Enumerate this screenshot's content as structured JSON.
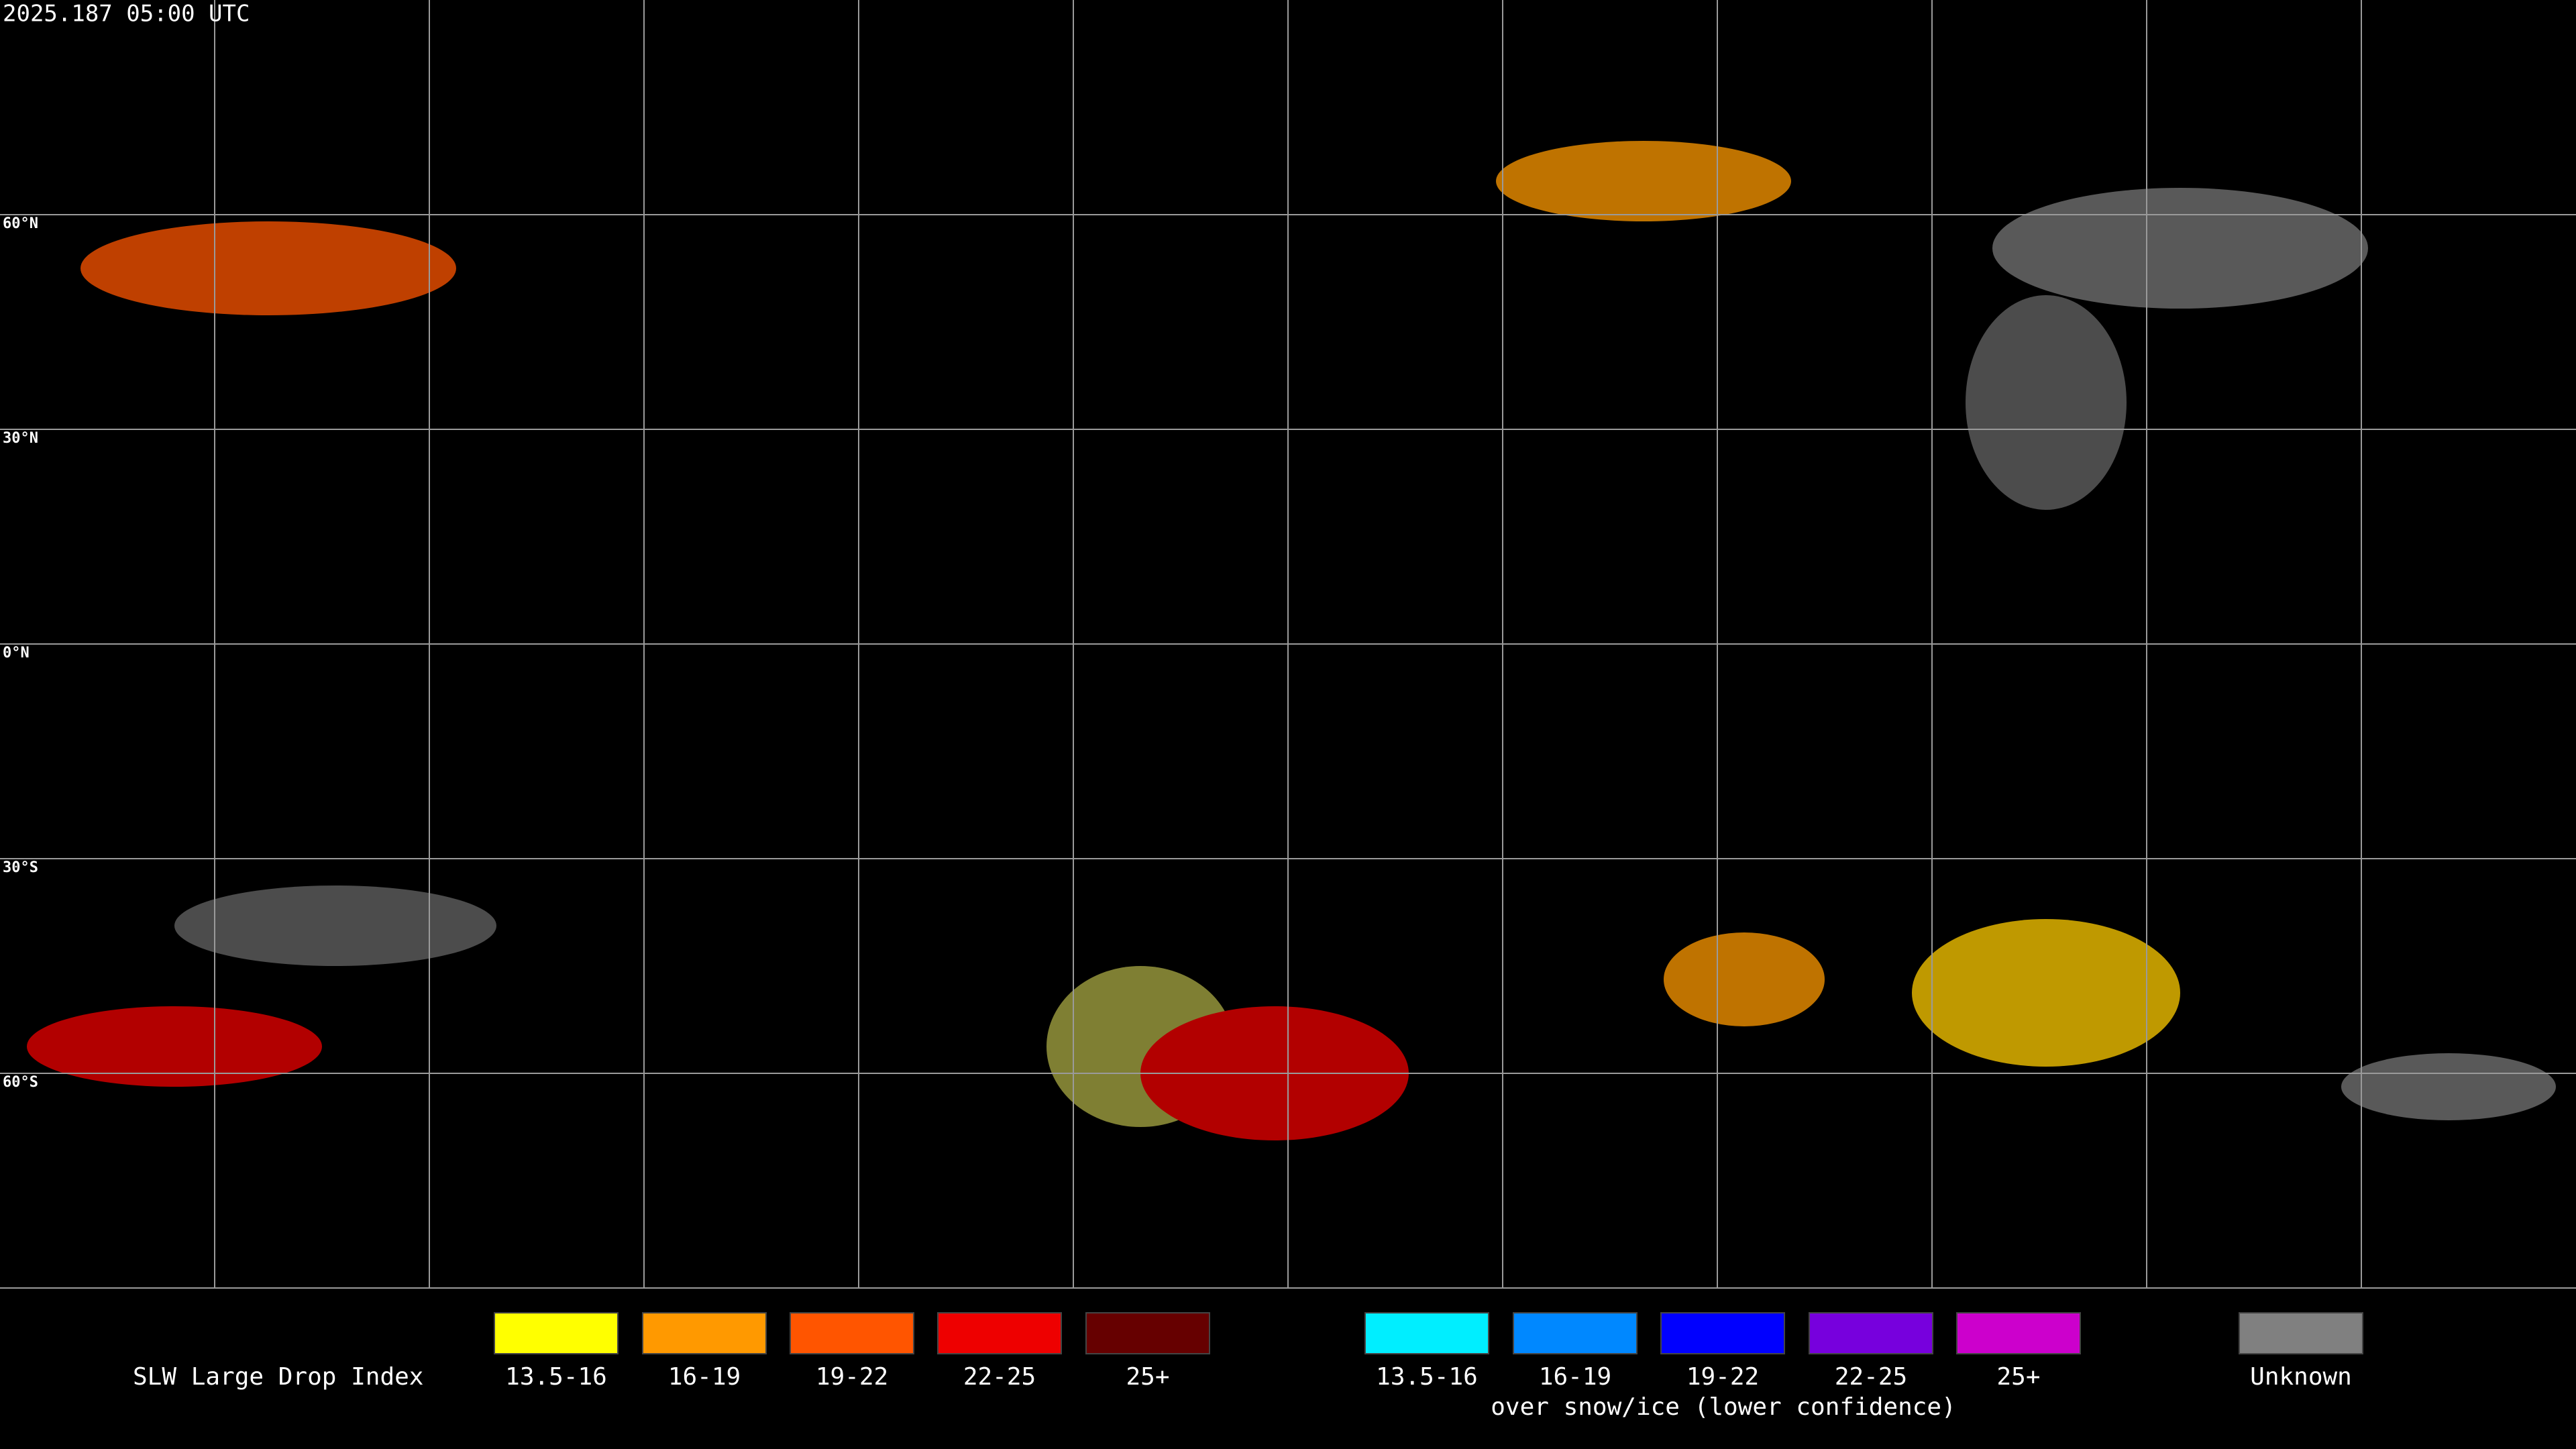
{
  "header": {
    "title": "2025.187 05:00 UTC"
  },
  "map": {
    "latitude_labels": [
      "60°N",
      "30°N",
      "0°N",
      "30°S",
      "60°S"
    ]
  },
  "legend": {
    "title": "SLW Large Drop Index",
    "note": "over snow/ice (lower confidence)",
    "items": [
      {
        "label": "13.5-16",
        "color": "#ffff00"
      },
      {
        "label": "16-19",
        "color": "#ff9900"
      },
      {
        "label": "19-22",
        "color": "#ff5500"
      },
      {
        "label": "22-25",
        "color": "#ee0000"
      },
      {
        "label": "25+",
        "color": "#660000"
      },
      {
        "label": "13.5-16",
        "color": "#00eeff"
      },
      {
        "label": "16-19",
        "color": "#0088ff"
      },
      {
        "label": "19-22",
        "color": "#0000ff"
      },
      {
        "label": "22-25",
        "color": "#7700dd"
      },
      {
        "label": "25+",
        "color": "#cc00cc"
      },
      {
        "label": "Unknown",
        "color": "#808080"
      }
    ]
  }
}
